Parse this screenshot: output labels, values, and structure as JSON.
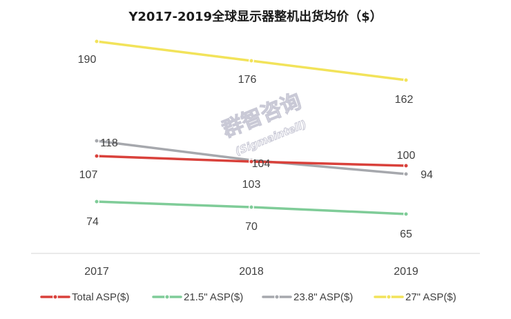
{
  "chart_data": {
    "type": "line",
    "title": "Y2017-2019全球显示器整机出货均价（$）",
    "categories": [
      "2017",
      "2018",
      "2019"
    ],
    "series": [
      {
        "name": "Total ASP($)",
        "color": "#d9413b",
        "values": [
          107,
          103,
          100
        ]
      },
      {
        "name": "21.5\" ASP($)",
        "color": "#7fcc98",
        "values": [
          74,
          70,
          65
        ]
      },
      {
        "name": "23.8\" ASP($)",
        "color": "#a6a8ad",
        "values": [
          118,
          104,
          94
        ]
      },
      {
        "name": "27\" ASP($)",
        "color": "#f2e35a",
        "values": [
          190,
          176,
          162
        ]
      }
    ],
    "ylim": [
      0,
      220
    ],
    "grid": false,
    "y_axis_visible": false,
    "legend": "bottom"
  },
  "watermark": {
    "line1": "群智咨询",
    "line2": "(Sigmaintell)"
  }
}
